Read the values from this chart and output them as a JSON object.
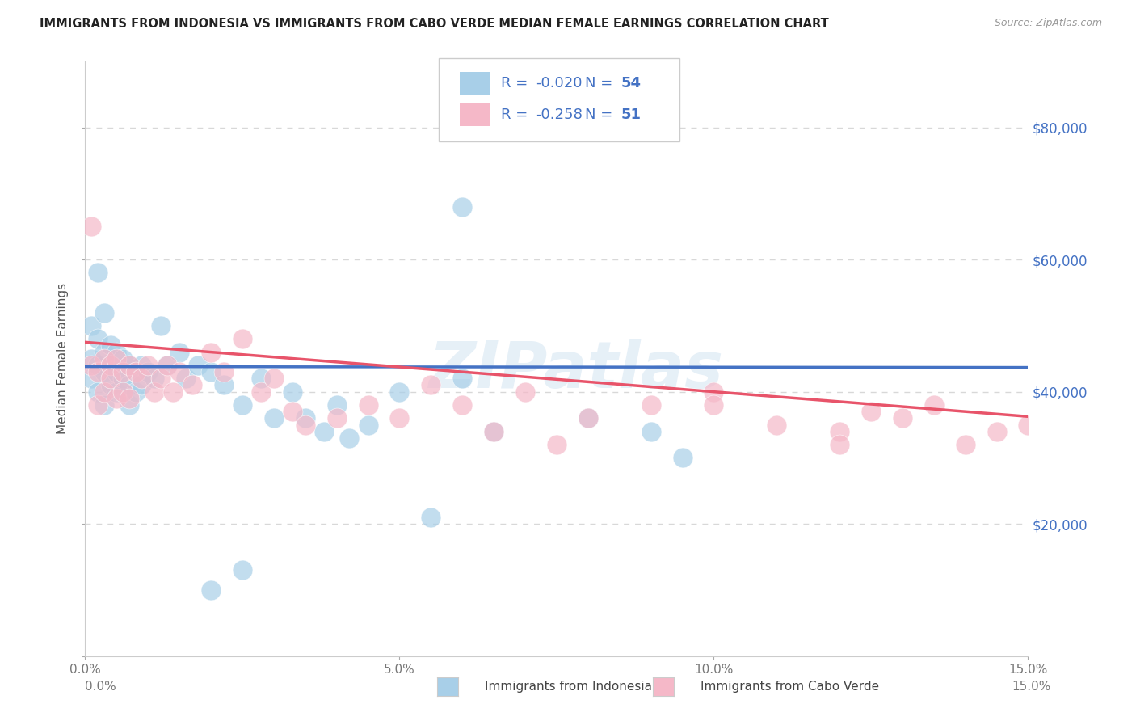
{
  "title": "IMMIGRANTS FROM INDONESIA VS IMMIGRANTS FROM CABO VERDE MEDIAN FEMALE EARNINGS CORRELATION CHART",
  "source": "Source: ZipAtlas.com",
  "ylabel": "Median Female Earnings",
  "xlim": [
    0,
    0.15
  ],
  "ylim": [
    0,
    90000
  ],
  "xtick_labels": [
    "0.0%",
    "5.0%",
    "10.0%",
    "15.0%"
  ],
  "series1_label": "Immigrants from Indonesia",
  "series1_color": "#a8cfe8",
  "series1_R": "-0.020",
  "series1_N": "54",
  "series2_label": "Immigrants from Cabo Verde",
  "series2_color": "#f5b8c8",
  "series2_R": "-0.258",
  "series2_N": "51",
  "legend_color": "#4472c4",
  "trend1_color": "#4472c4",
  "trend2_color": "#e8546a",
  "watermark": "ZIPatlas",
  "background_color": "#ffffff",
  "grid_color": "#d8d8d8",
  "title_color": "#222222",
  "right_label_color": "#4472c4",
  "trend1_intercept": 43800,
  "trend1_slope": -800,
  "trend2_intercept": 47500,
  "trend2_slope": -75000,
  "series1_x": [
    0.001,
    0.001,
    0.001,
    0.002,
    0.002,
    0.002,
    0.002,
    0.003,
    0.003,
    0.003,
    0.003,
    0.004,
    0.004,
    0.004,
    0.005,
    0.005,
    0.005,
    0.006,
    0.006,
    0.007,
    0.007,
    0.007,
    0.008,
    0.008,
    0.009,
    0.009,
    0.01,
    0.011,
    0.012,
    0.013,
    0.015,
    0.016,
    0.018,
    0.02,
    0.022,
    0.025,
    0.028,
    0.03,
    0.033,
    0.035,
    0.038,
    0.04,
    0.042,
    0.045,
    0.05,
    0.055,
    0.06,
    0.065,
    0.08,
    0.09,
    0.095,
    0.02,
    0.025,
    0.06
  ],
  "series1_y": [
    50000,
    45000,
    42000,
    58000,
    48000,
    44000,
    40000,
    52000,
    46000,
    43000,
    38000,
    47000,
    44000,
    41000,
    46000,
    43000,
    40000,
    45000,
    42000,
    44000,
    41000,
    38000,
    43000,
    40000,
    44000,
    41000,
    43000,
    42000,
    50000,
    44000,
    46000,
    42000,
    44000,
    43000,
    41000,
    38000,
    42000,
    36000,
    40000,
    36000,
    34000,
    38000,
    33000,
    35000,
    40000,
    21000,
    42000,
    34000,
    36000,
    34000,
    30000,
    10000,
    13000,
    68000
  ],
  "series2_x": [
    0.001,
    0.001,
    0.002,
    0.002,
    0.003,
    0.003,
    0.004,
    0.004,
    0.005,
    0.005,
    0.006,
    0.006,
    0.007,
    0.007,
    0.008,
    0.009,
    0.01,
    0.011,
    0.012,
    0.013,
    0.014,
    0.015,
    0.017,
    0.02,
    0.022,
    0.025,
    0.028,
    0.03,
    0.033,
    0.035,
    0.04,
    0.045,
    0.05,
    0.055,
    0.06,
    0.065,
    0.07,
    0.075,
    0.08,
    0.09,
    0.1,
    0.11,
    0.12,
    0.125,
    0.13,
    0.135,
    0.14,
    0.145,
    0.15,
    0.1,
    0.12
  ],
  "series2_y": [
    65000,
    44000,
    43000,
    38000,
    45000,
    40000,
    44000,
    42000,
    45000,
    39000,
    43000,
    40000,
    44000,
    39000,
    43000,
    42000,
    44000,
    40000,
    42000,
    44000,
    40000,
    43000,
    41000,
    46000,
    43000,
    48000,
    40000,
    42000,
    37000,
    35000,
    36000,
    38000,
    36000,
    41000,
    38000,
    34000,
    40000,
    32000,
    36000,
    38000,
    40000,
    35000,
    34000,
    37000,
    36000,
    38000,
    32000,
    34000,
    35000,
    38000,
    32000
  ]
}
